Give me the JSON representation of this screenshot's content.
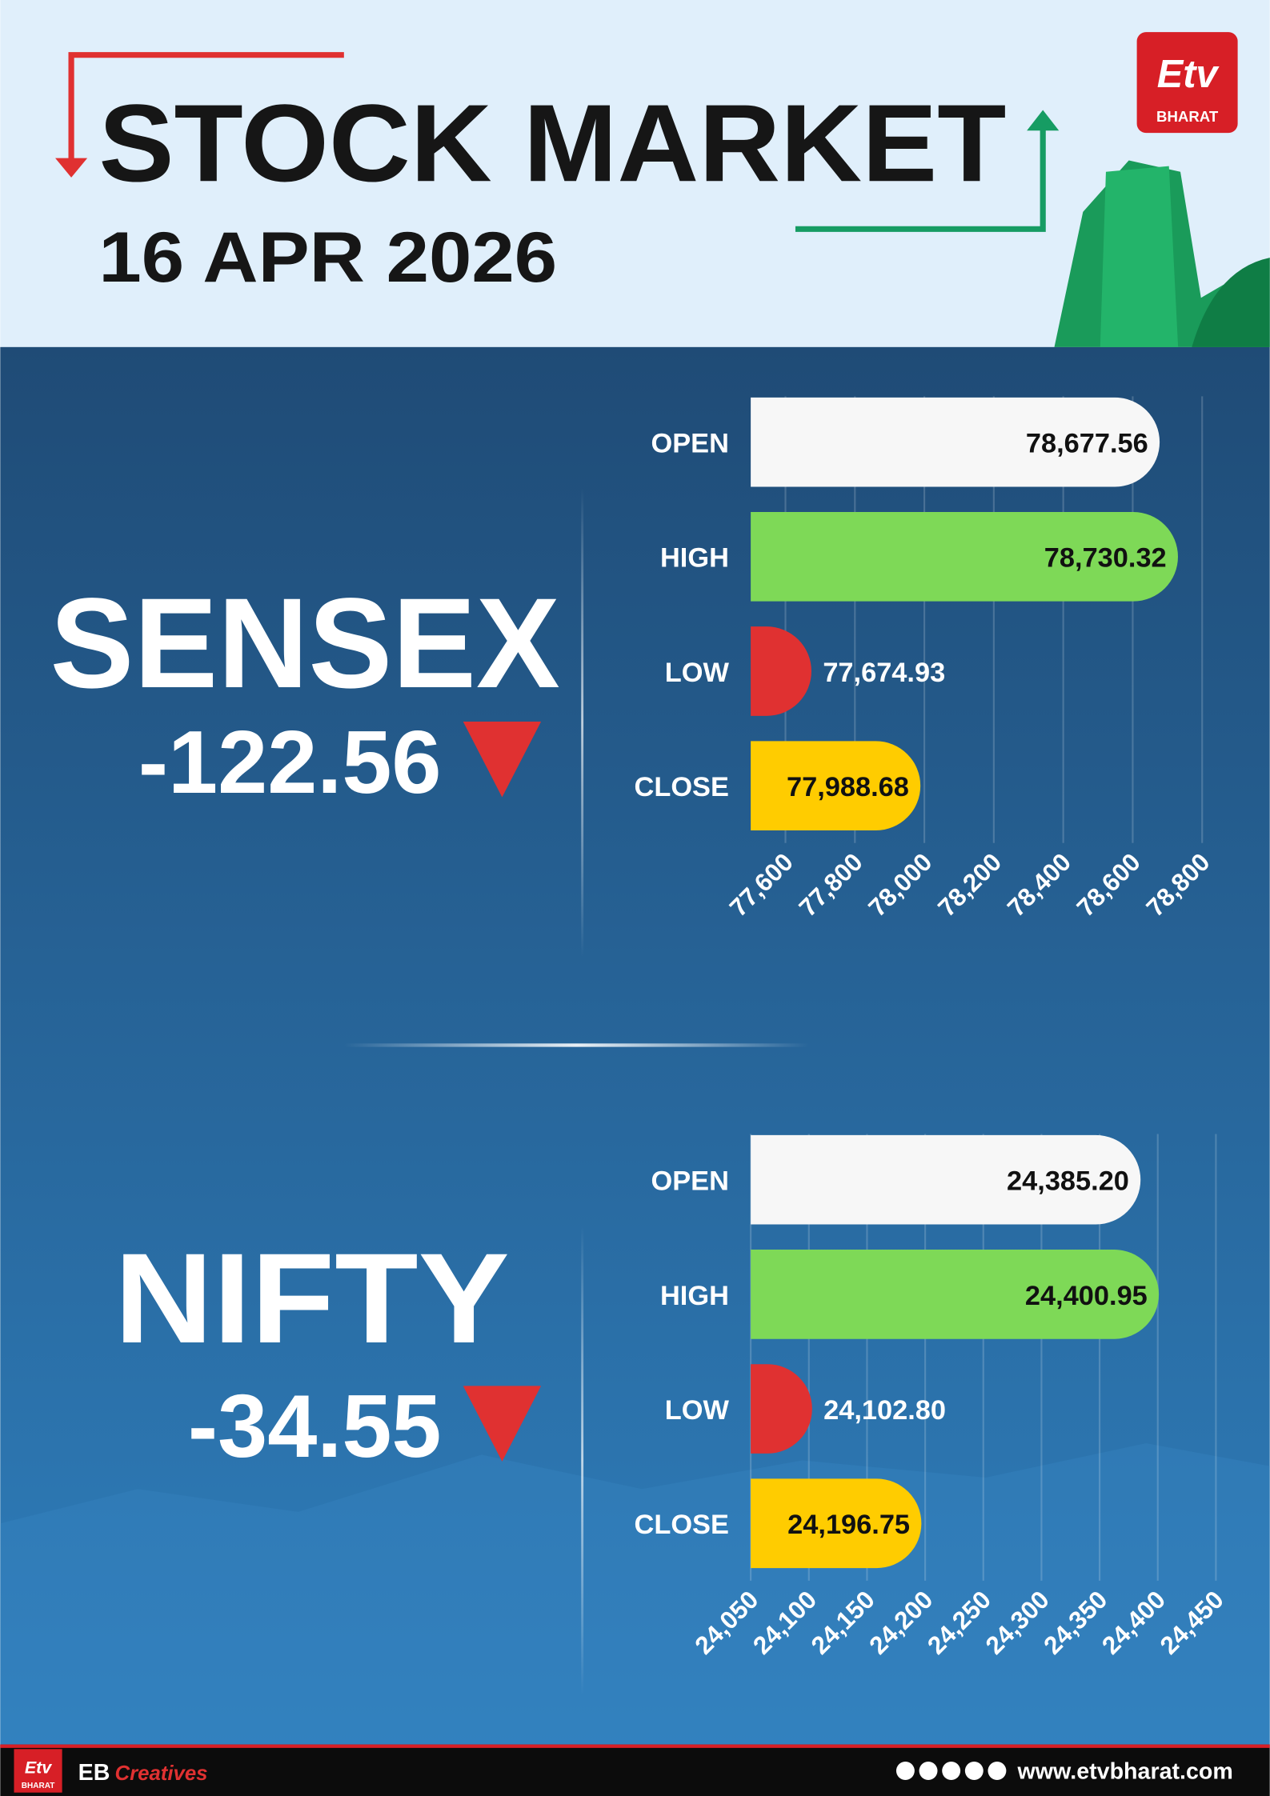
{
  "header": {
    "title": "STOCK MARKET",
    "date": "16 APR 2026",
    "logo": {
      "mark": "Etv",
      "name": "BHARAT"
    }
  },
  "chart_data": [
    {
      "type": "bar",
      "orientation": "horizontal",
      "title": "SENSEX",
      "change": -122.56,
      "categories": [
        "OPEN",
        "HIGH",
        "LOW",
        "CLOSE"
      ],
      "values": [
        78677.56,
        78730.32,
        77674.93,
        77988.68
      ],
      "value_labels": [
        "78,677.56",
        "78,730.32",
        "77,674.93",
        "77,988.68"
      ],
      "colors": [
        "#f7f7f7",
        "#7ed957",
        "#e03131",
        "#ffcc00"
      ],
      "xlim": [
        77500,
        78800
      ],
      "xticks": [
        {
          "value": 77600,
          "label": "77,600"
        },
        {
          "value": 77800,
          "label": "77,800"
        },
        {
          "value": 78000,
          "label": "78,000"
        },
        {
          "value": 78200,
          "label": "78,200"
        },
        {
          "value": 78400,
          "label": "78,400"
        },
        {
          "value": 78600,
          "label": "78,600"
        },
        {
          "value": 78800,
          "label": "78,800"
        }
      ],
      "grid": true
    },
    {
      "type": "bar",
      "orientation": "horizontal",
      "title": "NIFTY",
      "change": -34.55,
      "categories": [
        "OPEN",
        "HIGH",
        "LOW",
        "CLOSE"
      ],
      "values": [
        24385.2,
        24400.95,
        24102.8,
        24196.75
      ],
      "value_labels": [
        "24,385.20",
        "24,400.95",
        "24,102.80",
        "24,196.75"
      ],
      "colors": [
        "#f7f7f7",
        "#7ed957",
        "#e03131",
        "#ffcc00"
      ],
      "xlim": [
        24050,
        24450
      ],
      "xticks": [
        {
          "value": 24050,
          "label": "24,050"
        },
        {
          "value": 24100,
          "label": "24,100"
        },
        {
          "value": 24150,
          "label": "24,150"
        },
        {
          "value": 24200,
          "label": "24,200"
        },
        {
          "value": 24250,
          "label": "24,250"
        },
        {
          "value": 24300,
          "label": "24,300"
        },
        {
          "value": 24350,
          "label": "24,350"
        },
        {
          "value": 24400,
          "label": "24,400"
        },
        {
          "value": 24450,
          "label": "24,450"
        }
      ],
      "grid": true
    }
  ],
  "footer": {
    "brand": "EB",
    "tag": "Creatives",
    "website": "www.etvbharat.com",
    "logo": {
      "mark": "Etv",
      "name": "BHARAT"
    }
  }
}
